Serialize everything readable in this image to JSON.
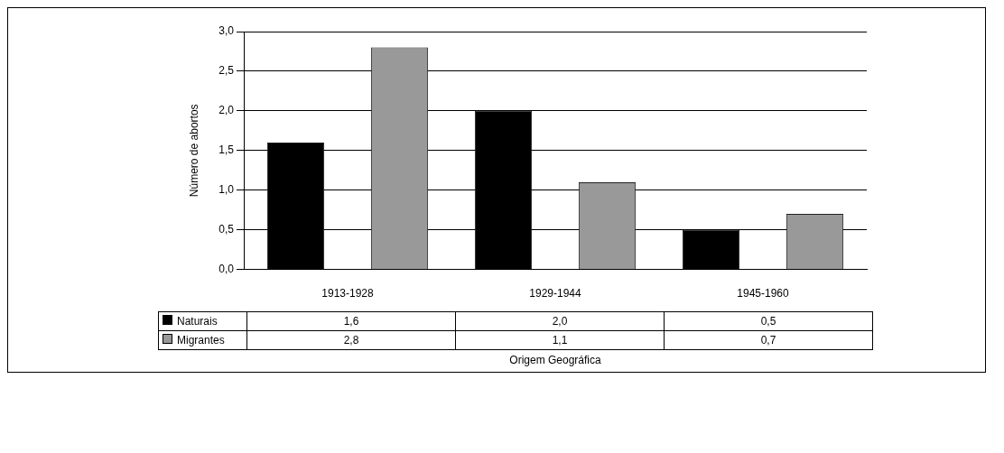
{
  "chart_data": {
    "type": "bar",
    "xlabel": "Origem Geográfica",
    "ylabel": "Número de abortos",
    "categories": [
      "1913-1928",
      "1929-1944",
      "1945-1960"
    ],
    "series": [
      {
        "name": "Naturais",
        "color": "#000000",
        "values": [
          1.6,
          2.0,
          0.5
        ],
        "value_labels": [
          "1,6",
          "2,0",
          "0,5"
        ]
      },
      {
        "name": "Migrantes",
        "color": "#999999",
        "values": [
          2.8,
          1.1,
          0.7
        ],
        "value_labels": [
          "2,8",
          "1,1",
          "0,7"
        ]
      }
    ],
    "ylim": [
      0,
      3
    ],
    "yticks": [
      {
        "value": 0,
        "label": "0,0"
      },
      {
        "value": 0.5,
        "label": "0,5"
      },
      {
        "value": 1,
        "label": "1,0"
      },
      {
        "value": 1.5,
        "label": "1,5"
      },
      {
        "value": 2,
        "label": "2,0"
      },
      {
        "value": 2.5,
        "label": "2,5"
      },
      {
        "value": 3,
        "label": "3,0"
      }
    ],
    "grid": "y",
    "legend": "bottom"
  }
}
